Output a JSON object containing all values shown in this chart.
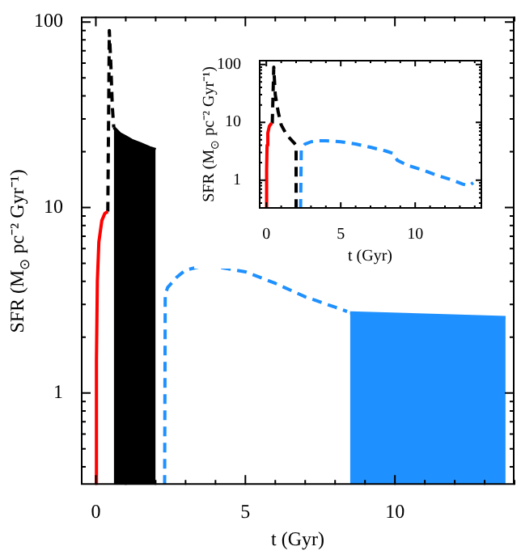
{
  "chart_data": [
    {
      "type": "line",
      "xlabel": "t (Gyr)",
      "ylabel": "SFR (M$_{⊙}$ pc⁻² Gyr⁻¹)",
      "log": "y",
      "xlim": [
        -0.5,
        14
      ],
      "ylim": [
        0.32,
        107
      ],
      "xticks": [
        0,
        {
          "value": 1,
          "label": null
        },
        {
          "value": 2,
          "label": null
        },
        {
          "value": 3,
          "label": null
        },
        {
          "value": 4,
          "label": null
        },
        5,
        {
          "value": 6,
          "label": null
        },
        {
          "value": 7,
          "label": null
        },
        {
          "value": 8,
          "label": null
        },
        {
          "value": 9,
          "label": null
        },
        10,
        {
          "value": 11,
          "label": null
        },
        {
          "value": 12,
          "label": null
        },
        {
          "value": 13,
          "label": null
        },
        {
          "value": 14,
          "label": null
        }
      ],
      "yticks": [
        {
          "value": 0.4,
          "label": null
        },
        {
          "value": 0.5,
          "label": null
        },
        {
          "value": 0.6,
          "label": null
        },
        {
          "value": 0.7,
          "label": null
        },
        {
          "value": 0.8,
          "label": null
        },
        {
          "value": 0.9,
          "label": null
        },
        1,
        {
          "value": 2,
          "label": null
        },
        {
          "value": 3,
          "label": null
        },
        {
          "value": 4,
          "label": null
        },
        {
          "value": 5,
          "label": null
        },
        {
          "value": 6,
          "label": null
        },
        {
          "value": 7,
          "label": null
        },
        {
          "value": 8,
          "label": null
        },
        {
          "value": 9,
          "label": null
        },
        10,
        {
          "value": 20,
          "label": null
        },
        {
          "value": 30,
          "label": null
        },
        {
          "value": 40,
          "label": null
        },
        {
          "value": 50,
          "label": null
        },
        {
          "value": 60,
          "label": null
        },
        {
          "value": 70,
          "label": null
        },
        {
          "value": 80,
          "label": null
        },
        {
          "value": 90,
          "label": null
        },
        100
      ],
      "series": [
        {
          "type": "line",
          "line_style": "solid",
          "color": "#ff0000",
          "x": [
            0,
            0.02,
            0.05,
            0.1,
            0.2,
            0.3,
            0.4
          ],
          "values": [
            0.32,
            1.5,
            4,
            6.5,
            8.5,
            9.3,
            9.5
          ]
        },
        {
          "type": "line",
          "line_style": "dashed",
          "color": "#000000",
          "x": [
            0.4,
            0.45,
            0.5,
            0.55,
            0.6
          ],
          "values": [
            9.5,
            90,
            60,
            35,
            27
          ]
        },
        {
          "type": "area",
          "color": "#000000",
          "x": [
            0.6,
            0.8,
            1.0,
            1.2,
            1.5,
            1.8,
            2.0
          ],
          "values": [
            27,
            25,
            24,
            23,
            22,
            21,
            20.5
          ]
        },
        {
          "type": "line",
          "line_style": "dashed",
          "color": "#1e90ff",
          "x": [
            2.3,
            2.32,
            2.4,
            2.7,
            3.0,
            3.5,
            4.0,
            5,
            6,
            7,
            8,
            8.4
          ],
          "values": [
            0.32,
            3.4,
            3.7,
            4.2,
            4.6,
            4.8,
            4.8,
            4.5,
            3.9,
            3.3,
            2.9,
            2.75
          ]
        },
        {
          "type": "area",
          "color": "#1e90ff",
          "x": [
            8.5,
            13.7
          ],
          "values": [
            2.7,
            2.55
          ]
        }
      ]
    },
    {
      "type": "line",
      "xlabel": "t (Gyr)",
      "ylabel": "SFR (M$_{⊙}$ pc⁻² Gyr⁻¹)",
      "log": "y",
      "xlim": [
        -0.5,
        14.5
      ],
      "ylim": [
        0.32,
        120
      ],
      "xticks": [
        0,
        {
          "value": 1,
          "label": null
        },
        {
          "value": 2,
          "label": null
        },
        {
          "value": 3,
          "label": null
        },
        {
          "value": 4,
          "label": null
        },
        5,
        {
          "value": 6,
          "label": null
        },
        {
          "value": 7,
          "label": null
        },
        {
          "value": 8,
          "label": null
        },
        {
          "value": 9,
          "label": null
        },
        10,
        {
          "value": 11,
          "label": null
        },
        {
          "value": 12,
          "label": null
        },
        {
          "value": 13,
          "label": null
        },
        {
          "value": 14,
          "label": null
        }
      ],
      "yticks": [
        {
          "value": 0.4,
          "label": null
        },
        {
          "value": 0.5,
          "label": null
        },
        {
          "value": 0.6,
          "label": null
        },
        {
          "value": 0.7,
          "label": null
        },
        {
          "value": 0.8,
          "label": null
        },
        {
          "value": 0.9,
          "label": null
        },
        1,
        {
          "value": 2,
          "label": null
        },
        {
          "value": 3,
          "label": null
        },
        {
          "value": 4,
          "label": null
        },
        {
          "value": 5,
          "label": null
        },
        {
          "value": 6,
          "label": null
        },
        {
          "value": 7,
          "label": null
        },
        {
          "value": 8,
          "label": null
        },
        {
          "value": 9,
          "label": null
        },
        10,
        {
          "value": 20,
          "label": null
        },
        {
          "value": 30,
          "label": null
        },
        {
          "value": 40,
          "label": null
        },
        {
          "value": 50,
          "label": null
        },
        {
          "value": 60,
          "label": null
        },
        {
          "value": 70,
          "label": null
        },
        {
          "value": 80,
          "label": null
        },
        {
          "value": 90,
          "label": null
        },
        100
      ],
      "series": [
        {
          "type": "line",
          "line_style": "solid",
          "color": "#ff0000",
          "x": [
            0,
            0.02,
            0.05,
            0.1,
            0.2,
            0.3,
            0.4
          ],
          "values": [
            0.32,
            1.5,
            4,
            6.5,
            8.5,
            9.3,
            9.5
          ]
        },
        {
          "type": "line",
          "line_style": "dashed",
          "color": "#000000",
          "x": [
            0.4,
            0.5,
            0.6,
            0.8,
            1.0,
            1.3,
            1.6,
            1.9,
            2.0,
            2.0
          ],
          "values": [
            9.5,
            90,
            30,
            15,
            9,
            6.5,
            5.2,
            4.3,
            4,
            0.32
          ]
        },
        {
          "type": "line",
          "line_style": "dashed",
          "color": "#1e90ff",
          "x": [
            2.3,
            2.35,
            2.6,
            3,
            3.5,
            4,
            5,
            6,
            7,
            8,
            8.5,
            8.8,
            9.5,
            10.5,
            11.5,
            12.5,
            13.2,
            13.6,
            13.9
          ],
          "values": [
            0.32,
            3.5,
            4.2,
            4.6,
            4.8,
            4.8,
            4.6,
            4.2,
            3.7,
            3.2,
            2.9,
            2.2,
            1.8,
            1.5,
            1.2,
            1.0,
            0.85,
            0.8,
            0.9
          ]
        }
      ]
    }
  ]
}
